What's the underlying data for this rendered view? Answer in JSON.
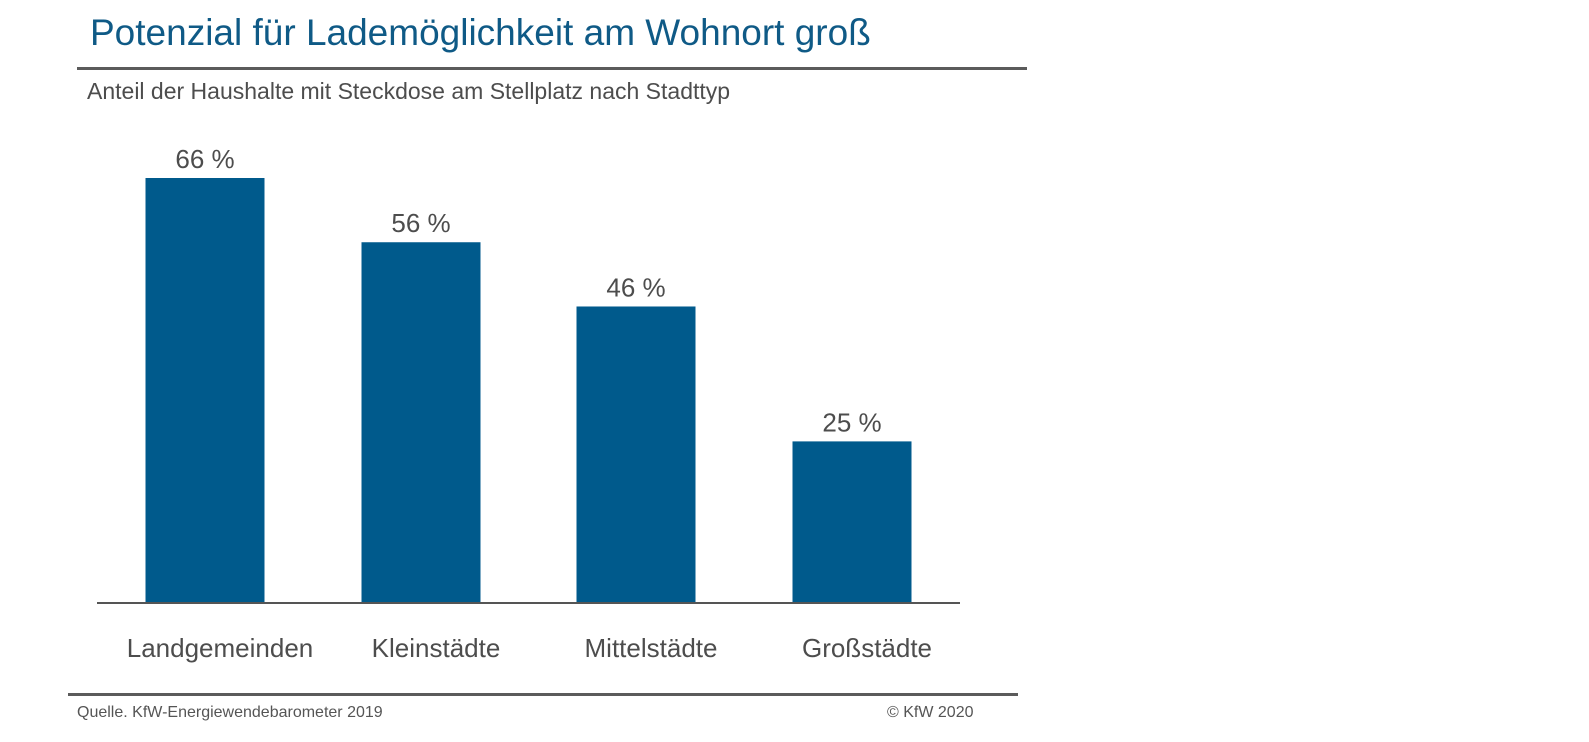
{
  "header": {
    "title": "Potenzial für Lademöglichkeit am Wohnort groß",
    "subtitle": "Anteil der Haushalte mit Steckdose am Stellplatz nach Stadttyp"
  },
  "footer": {
    "source": "Quelle. KfW-Energiewendebarometer 2019",
    "copyright": "© KfW 2020"
  },
  "chart_data": {
    "type": "bar",
    "title": "Potenzial für Lademöglichkeit am Wohnort groß",
    "subtitle": "Anteil der Haushalte mit Steckdose am Stellplatz nach Stadttyp",
    "categories": [
      "Landgemeinden",
      "Kleinstädte",
      "Mittelstädte",
      "Großstädte"
    ],
    "values": [
      66,
      56,
      46,
      25
    ],
    "value_labels": [
      "66 %",
      "56 %",
      "46 %",
      "25 %"
    ],
    "unit": "%",
    "ylim": [
      0,
      66
    ],
    "grid": false,
    "legend": "none",
    "colors": {
      "bar": "#005a8c",
      "axis": "#555555",
      "label_text": "#4d4d4d"
    }
  }
}
